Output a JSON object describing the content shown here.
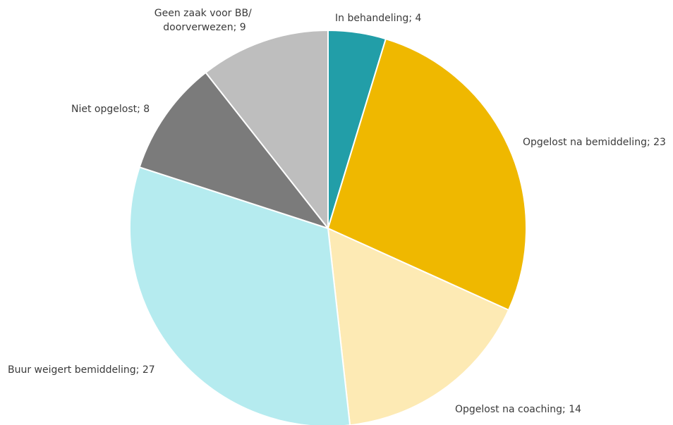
{
  "chart_data": {
    "type": "pie",
    "start_angle_deg": 0,
    "direction": "clockwise",
    "slices": [
      {
        "label": "In behandeling",
        "value": 4,
        "color": "#229ea8"
      },
      {
        "label": "Opgelost na bemiddeling",
        "value": 23,
        "color": "#efb800"
      },
      {
        "label": "Opgelost na coaching",
        "value": 14,
        "color": "#fdeab4"
      },
      {
        "label": "Buur weigert bemiddeling",
        "value": 27,
        "color": "#b5ebef"
      },
      {
        "label": "Niet opgelost",
        "value": 8,
        "color": "#7b7b7b"
      },
      {
        "label": "Geen zaak voor BB/ doorverwezen",
        "value": 9,
        "color": "#bebebe"
      }
    ],
    "labels": [
      {
        "lines": [
          "In behandeling; 4"
        ]
      },
      {
        "lines": [
          "Opgelost na bemiddeling; 23"
        ]
      },
      {
        "lines": [
          "Opgelost na coaching; 14"
        ]
      },
      {
        "lines": [
          "Buur weigert bemiddeling; 27"
        ]
      },
      {
        "lines": [
          "Niet opgelost; 8"
        ]
      },
      {
        "lines": [
          "Geen zaak voor BB/",
          "doorverwezen; 9"
        ]
      }
    ]
  }
}
